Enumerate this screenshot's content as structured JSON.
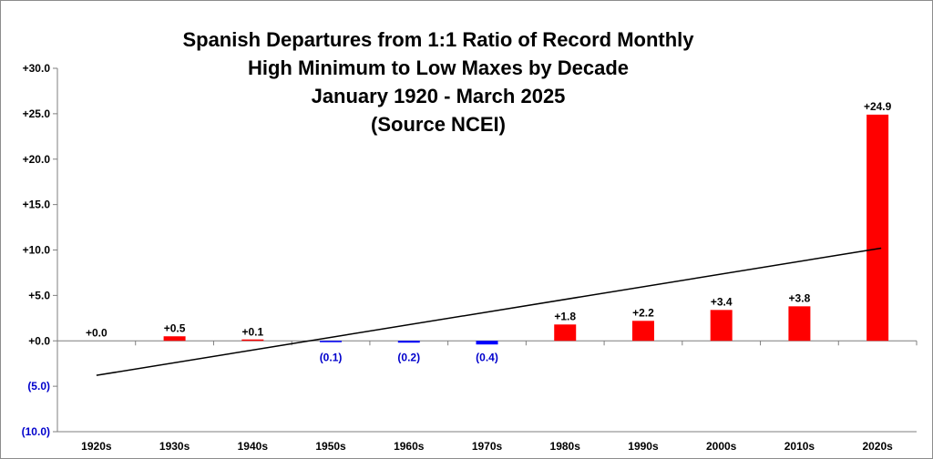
{
  "chart_data": {
    "type": "bar",
    "title_lines": [
      "Spanish Departures from 1:1 Ratio of Record Monthly",
      "High Minimum to Low Maxes by Decade",
      "January 1920 - March 2025",
      "(Source NCEI)"
    ],
    "categories": [
      "1920s",
      "1930s",
      "1940s",
      "1950s",
      "1960s",
      "1970s",
      "1980s",
      "1990s",
      "2000s",
      "2010s",
      "2020s"
    ],
    "values": [
      0.0,
      0.5,
      0.1,
      -0.1,
      -0.2,
      -0.4,
      1.8,
      2.2,
      3.4,
      3.8,
      24.9
    ],
    "data_labels": [
      "+0.0",
      "+0.5",
      "+0.1",
      "(0.1)",
      "(0.2)",
      "(0.4)",
      "+1.8",
      "+2.2",
      "+3.4",
      "+3.8",
      "+24.9"
    ],
    "ylim": [
      -10,
      30
    ],
    "yticks": [
      30,
      25,
      20,
      15,
      10,
      5,
      0,
      -5,
      -10
    ],
    "ytick_labels": [
      "+30.0",
      "+25.0",
      "+20.0",
      "+15.0",
      "+10.0",
      "+5.0",
      "+0.0",
      "(5.0)",
      "(10.0)"
    ],
    "trendline": {
      "type": "linear",
      "start_value": -3.8,
      "end_value": 10.2
    },
    "colors": {
      "positive": "#ff0000",
      "negative": "#0000ff",
      "negative_label": "#0000cc",
      "axis": "#7f7f7f",
      "trend": "#000000"
    },
    "grid": false,
    "legend": "none"
  }
}
